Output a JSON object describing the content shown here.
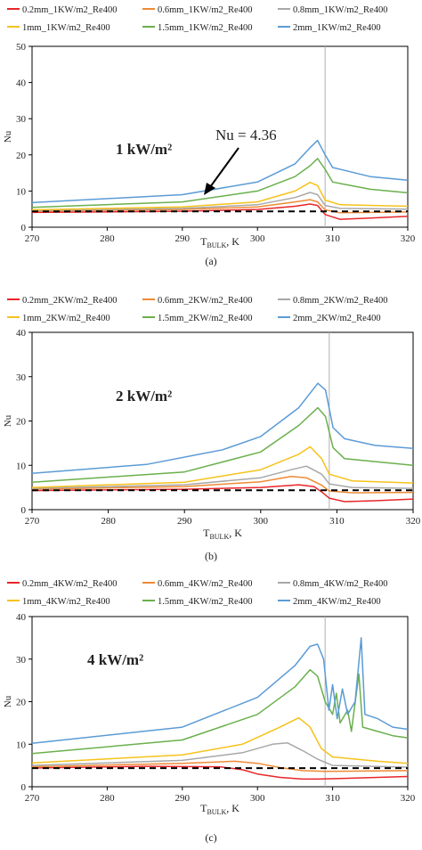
{
  "chart_data": [
    {
      "type": "line",
      "panel_label": "(a)",
      "annotation": "1 kW/m²",
      "reference_text": "Nu = 4.36",
      "xlabel_main": "T",
      "xlabel_sub": "BULK",
      "xlabel_tail": ", K",
      "ylabel": "Nu",
      "xlim": [
        270,
        320
      ],
      "ylim": [
        0,
        50
      ],
      "xticks": [
        270,
        280,
        290,
        300,
        310,
        320
      ],
      "yticks": [
        0,
        10,
        20,
        30,
        40,
        50
      ],
      "reference_line": {
        "y": 4.36,
        "style": "dashed"
      },
      "vertical_line": {
        "x": 309
      },
      "legend_placement": "top",
      "series": [
        {
          "name": "0.2mm_1KW/m2_Re400",
          "color": "#e8262a",
          "points": [
            [
              270,
              4.1
            ],
            [
              290,
              4.4
            ],
            [
              300,
              4.9
            ],
            [
              305,
              5.8
            ],
            [
              307,
              6.4
            ],
            [
              308,
              6.0
            ],
            [
              309,
              3.5
            ],
            [
              311,
              2.2
            ],
            [
              315,
              2.5
            ],
            [
              320,
              3.0
            ]
          ]
        },
        {
          "name": "0.6mm_1KW/m2_Re400",
          "color": "#ef8a35",
          "points": [
            [
              270,
              4.4
            ],
            [
              290,
              4.9
            ],
            [
              300,
              5.6
            ],
            [
              305,
              7.0
            ],
            [
              307,
              7.6
            ],
            [
              308,
              7.0
            ],
            [
              309,
              4.8
            ],
            [
              311,
              4.0
            ],
            [
              320,
              4.2
            ]
          ]
        },
        {
          "name": "0.8mm_1KW/m2_Re400",
          "color": "#a8a8a8",
          "points": [
            [
              270,
              4.6
            ],
            [
              290,
              5.2
            ],
            [
              300,
              6.2
            ],
            [
              305,
              8.2
            ],
            [
              307,
              9.6
            ],
            [
              308,
              9.0
            ],
            [
              309,
              6.0
            ],
            [
              311,
              5.2
            ],
            [
              320,
              5.0
            ]
          ]
        },
        {
          "name": "1mm_1KW/m2_Re400",
          "color": "#f6c21b",
          "points": [
            [
              270,
              4.8
            ],
            [
              290,
              5.6
            ],
            [
              300,
              7.0
            ],
            [
              305,
              10.0
            ],
            [
              307,
              12.4
            ],
            [
              308,
              11.5
            ],
            [
              309,
              7.5
            ],
            [
              311,
              6.2
            ],
            [
              320,
              5.8
            ]
          ]
        },
        {
          "name": "1.5mm_1KW/m2_Re400",
          "color": "#6ab04c",
          "points": [
            [
              270,
              5.5
            ],
            [
              290,
              7.0
            ],
            [
              300,
              10.0
            ],
            [
              305,
              14.0
            ],
            [
              307,
              17.0
            ],
            [
              308,
              19.0
            ],
            [
              309,
              16.0
            ],
            [
              310,
              12.5
            ],
            [
              315,
              10.5
            ],
            [
              320,
              9.5
            ]
          ]
        },
        {
          "name": "2mm_1KW/m2_Re400",
          "color": "#5b9bd5",
          "points": [
            [
              270,
              6.8
            ],
            [
              290,
              9.0
            ],
            [
              300,
              12.5
            ],
            [
              305,
              17.5
            ],
            [
              307,
              22.0
            ],
            [
              308,
              24.0
            ],
            [
              309,
              20.0
            ],
            [
              310,
              16.5
            ],
            [
              315,
              14.0
            ],
            [
              320,
              13.0
            ]
          ]
        }
      ]
    },
    {
      "type": "line",
      "panel_label": "(b)",
      "annotation": "2 kW/m²",
      "xlabel_main": "T",
      "xlabel_sub": "BULK",
      "xlabel_tail": ", K",
      "ylabel": "Nu",
      "xlim": [
        270,
        320
      ],
      "ylim": [
        0,
        40
      ],
      "xticks": [
        270,
        280,
        290,
        300,
        310,
        320
      ],
      "yticks": [
        0,
        10,
        20,
        30,
        40
      ],
      "reference_line": {
        "y": 4.36,
        "style": "dashed"
      },
      "vertical_line": {
        "x": 309
      },
      "legend_placement": "top",
      "series": [
        {
          "name": "0.2mm_2KW/m2_Re400",
          "color": "#e8262a",
          "points": [
            [
              270,
              4.3
            ],
            [
              290,
              4.6
            ],
            [
              300,
              5.0
            ],
            [
              305,
              5.6
            ],
            [
              307,
              5.2
            ],
            [
              308,
              4.0
            ],
            [
              309,
              2.6
            ],
            [
              311,
              1.8
            ],
            [
              315,
              2.0
            ],
            [
              320,
              2.4
            ]
          ]
        },
        {
          "name": "0.6mm_2KW/m2_Re400",
          "color": "#ef8a35",
          "points": [
            [
              270,
              4.6
            ],
            [
              290,
              5.2
            ],
            [
              300,
              6.3
            ],
            [
              304,
              7.5
            ],
            [
              306,
              7.2
            ],
            [
              308,
              5.5
            ],
            [
              309,
              4.2
            ],
            [
              312,
              3.8
            ],
            [
              320,
              3.9
            ]
          ]
        },
        {
          "name": "0.8mm_2KW/m2_Re400",
          "color": "#a8a8a8",
          "points": [
            [
              270,
              4.8
            ],
            [
              290,
              5.6
            ],
            [
              300,
              7.2
            ],
            [
              304,
              9.0
            ],
            [
              306,
              9.8
            ],
            [
              308,
              8.0
            ],
            [
              309,
              5.8
            ],
            [
              312,
              5.0
            ],
            [
              320,
              4.8
            ]
          ]
        },
        {
          "name": "1mm_2KW/m2_Re400",
          "color": "#f6c21b",
          "points": [
            [
              270,
              5.0
            ],
            [
              290,
              6.2
            ],
            [
              300,
              9.0
            ],
            [
              305,
              12.5
            ],
            [
              306.5,
              14.2
            ],
            [
              308,
              11.5
            ],
            [
              309,
              8.0
            ],
            [
              312,
              6.5
            ],
            [
              320,
              6.0
            ]
          ]
        },
        {
          "name": "1.5mm_2KW/m2_Re400",
          "color": "#6ab04c",
          "points": [
            [
              270,
              6.2
            ],
            [
              290,
              8.5
            ],
            [
              300,
              13.0
            ],
            [
              305,
              19.0
            ],
            [
              307.5,
              23.0
            ],
            [
              308.5,
              21.0
            ],
            [
              309.5,
              14.0
            ],
            [
              311,
              11.5
            ],
            [
              320,
              10.0
            ]
          ]
        },
        {
          "name": "2mm_2KW/m2_Re400",
          "color": "#5b9bd5",
          "points": [
            [
              270,
              8.2
            ],
            [
              285,
              10.2
            ],
            [
              295,
              13.5
            ],
            [
              300,
              16.5
            ],
            [
              305,
              23.0
            ],
            [
              307.5,
              28.5
            ],
            [
              308.5,
              27.0
            ],
            [
              309.5,
              18.5
            ],
            [
              311,
              16.0
            ],
            [
              315,
              14.5
            ],
            [
              320,
              13.8
            ]
          ]
        }
      ]
    },
    {
      "type": "line",
      "panel_label": "(c)",
      "annotation": "4 kW/m²",
      "xlabel_main": "T",
      "xlabel_sub": "BULK",
      "xlabel_tail": ", K",
      "ylabel": "Nu",
      "xlim": [
        270,
        320
      ],
      "ylim": [
        0,
        40
      ],
      "xticks": [
        270,
        280,
        290,
        300,
        310,
        320
      ],
      "yticks": [
        0,
        10,
        20,
        30,
        40
      ],
      "reference_line": {
        "y": 4.36,
        "style": "dashed"
      },
      "vertical_line": {
        "x": 309
      },
      "legend_placement": "top",
      "series": [
        {
          "name": "0.2mm_4KW/m2_Re400",
          "color": "#e8262a",
          "points": [
            [
              270,
              4.4
            ],
            [
              285,
              4.8
            ],
            [
              295,
              4.7
            ],
            [
              298,
              4.0
            ],
            [
              300,
              3.0
            ],
            [
              303,
              2.2
            ],
            [
              306,
              1.8
            ],
            [
              308,
              1.8
            ],
            [
              312,
              2.0
            ],
            [
              320,
              2.4
            ]
          ]
        },
        {
          "name": "0.6mm_4KW/m2_Re400",
          "color": "#ef8a35",
          "points": [
            [
              270,
              4.7
            ],
            [
              290,
              5.5
            ],
            [
              297,
              6.0
            ],
            [
              300,
              5.5
            ],
            [
              303,
              4.5
            ],
            [
              306,
              3.8
            ],
            [
              309,
              3.6
            ],
            [
              320,
              3.8
            ]
          ]
        },
        {
          "name": "0.8mm_4KW/m2_Re400",
          "color": "#a8a8a8",
          "points": [
            [
              270,
              5.0
            ],
            [
              290,
              6.2
            ],
            [
              298,
              8.0
            ],
            [
              302,
              10.0
            ],
            [
              304,
              10.3
            ],
            [
              306,
              8.5
            ],
            [
              308,
              6.5
            ],
            [
              310,
              5.0
            ],
            [
              320,
              4.6
            ]
          ]
        },
        {
          "name": "1mm_4KW/m2_Re400",
          "color": "#f6c21b",
          "points": [
            [
              270,
              5.6
            ],
            [
              290,
              7.5
            ],
            [
              298,
              10.0
            ],
            [
              303,
              14.0
            ],
            [
              305.5,
              16.2
            ],
            [
              307,
              14.0
            ],
            [
              308.5,
              9.0
            ],
            [
              310,
              7.0
            ],
            [
              313,
              6.5
            ],
            [
              316,
              6.0
            ],
            [
              320,
              5.5
            ]
          ]
        },
        {
          "name": "1.5mm_4KW/m2_Re400",
          "color": "#6ab04c",
          "points": [
            [
              270,
              7.8
            ],
            [
              290,
              11.0
            ],
            [
              300,
              17.0
            ],
            [
              305,
              23.5
            ],
            [
              307,
              27.5
            ],
            [
              308,
              26.0
            ],
            [
              309,
              20.0
            ],
            [
              310,
              17.0
            ],
            [
              310.5,
              22.0
            ],
            [
              311,
              15.0
            ],
            [
              312,
              18.0
            ],
            [
              312.5,
              13.0
            ],
            [
              313.5,
              26.5
            ],
            [
              314,
              14.0
            ],
            [
              316,
              13.0
            ],
            [
              318,
              12.0
            ],
            [
              320,
              11.5
            ]
          ]
        },
        {
          "name": "2mm_4KW/m2_Re400",
          "color": "#5b9bd5",
          "points": [
            [
              270,
              10.2
            ],
            [
              290,
              14.0
            ],
            [
              300,
              21.0
            ],
            [
              305,
              28.5
            ],
            [
              307,
              33.0
            ],
            [
              308,
              33.5
            ],
            [
              308.8,
              30.0
            ],
            [
              309.5,
              18.0
            ],
            [
              310,
              24.0
            ],
            [
              310.6,
              16.0
            ],
            [
              311.3,
              23.0
            ],
            [
              312,
              17.0
            ],
            [
              313,
              20.0
            ],
            [
              313.8,
              35.0
            ],
            [
              314.3,
              17.0
            ],
            [
              316,
              16.0
            ],
            [
              318,
              14.0
            ],
            [
              320,
              13.5
            ]
          ]
        }
      ]
    }
  ]
}
